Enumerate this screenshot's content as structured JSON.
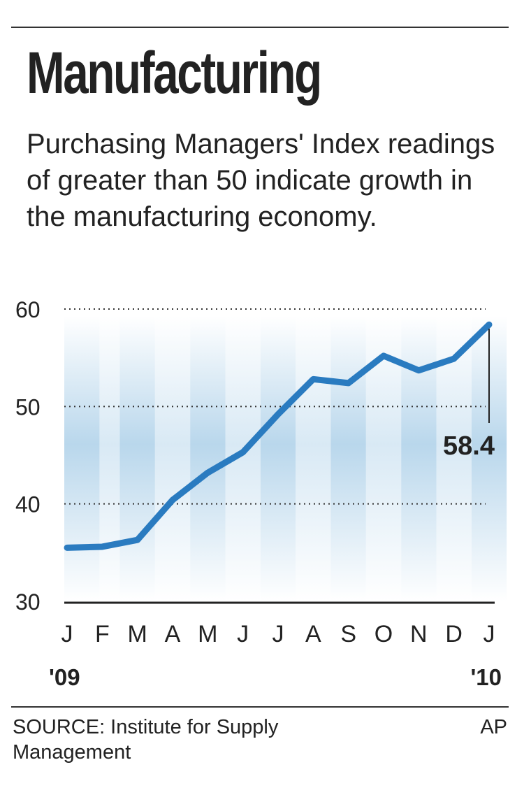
{
  "title": "Manufacturing",
  "subtitle": "Purchasing Managers' Index readings of greater than 50 indicate growth in the manufacturing economy.",
  "source": "SOURCE: Institute for Supply Management",
  "credit": "AP",
  "chart_data": {
    "type": "line",
    "categories": [
      "J",
      "F",
      "M",
      "A",
      "M",
      "J",
      "J",
      "A",
      "S",
      "O",
      "N",
      "D",
      "J"
    ],
    "year_labels": [
      "'09",
      "'10"
    ],
    "values": [
      35.5,
      35.6,
      36.3,
      40.4,
      43.2,
      45.3,
      49.2,
      52.8,
      52.4,
      55.2,
      53.7,
      54.9,
      58.4
    ],
    "ylim": [
      30,
      60
    ],
    "yticks": [
      30,
      40,
      50,
      60
    ],
    "grid": true,
    "annotation": "58.4",
    "line_color": "#2a7bc0",
    "background_color": "#b9d7ec"
  }
}
